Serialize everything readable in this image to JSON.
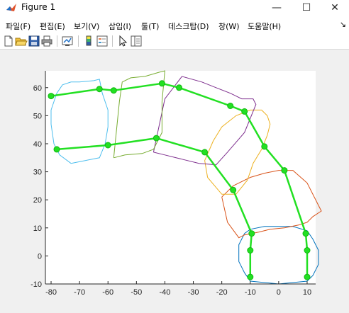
{
  "window": {
    "title": "Figure 1",
    "minimize_glyph": "—",
    "maximize_glyph": "☐",
    "close_glyph": "✕"
  },
  "menu": {
    "items": [
      "파일(F)",
      "편집(E)",
      "보기(V)",
      "삽입(I)",
      "툴(T)",
      "데스크탑(D)",
      "창(W)",
      "도움말(H)"
    ],
    "overflow_glyph": "↘"
  },
  "toolbar": {
    "icons": [
      "new-figure-icon",
      "open-file-icon",
      "save-icon",
      "print-icon",
      "link-plot-icon",
      "insert-colorbar-icon",
      "insert-legend-icon",
      "edit-plot-arrow-icon",
      "property-inspector-icon"
    ]
  },
  "colors": {
    "skeleton": "#22e022",
    "shapes": [
      "#0072bd",
      "#d95319",
      "#edb120",
      "#7e2f8e",
      "#77ac30",
      "#4dbeee"
    ]
  },
  "chart_data": {
    "type": "line",
    "title": "",
    "xlabel": "",
    "ylabel": "",
    "xlim": [
      -82,
      13
    ],
    "ylim": [
      -10,
      66
    ],
    "xticks": [
      -80,
      -70,
      -60,
      -50,
      -40,
      -30,
      -20,
      -10,
      0,
      10
    ],
    "yticks": [
      -10,
      0,
      10,
      20,
      30,
      40,
      50,
      60
    ],
    "grid": false,
    "skeleton_series": [
      {
        "x": [
          -10,
          -10,
          -9.5,
          -16,
          -26,
          -43,
          -60,
          -78
        ],
        "y": [
          -7.5,
          2,
          8,
          23.5,
          37,
          42,
          39.5,
          38
        ]
      },
      {
        "x": [
          10,
          10,
          9.5,
          2,
          -5,
          -12,
          -17,
          -35,
          -41,
          -58,
          -63,
          -80
        ],
        "y": [
          -7.5,
          2,
          8,
          30.5,
          39,
          51.5,
          53.5,
          60,
          61.5,
          59,
          59.5,
          57
        ]
      }
    ],
    "shape_outlines": [
      {
        "x": [
          -10,
          -12,
          -14,
          -14,
          -12,
          -10,
          -5,
          5,
          10,
          12,
          14,
          14,
          12,
          10,
          0,
          -10
        ],
        "y": [
          -9,
          -6,
          -2,
          4,
          8,
          9.5,
          10.5,
          10.5,
          9,
          6,
          2,
          -3,
          -7,
          -9,
          -10,
          -9
        ]
      },
      {
        "x": [
          -20,
          -16,
          -10,
          -5,
          0,
          5,
          10,
          15,
          12,
          10,
          7,
          2,
          -3,
          -7,
          -12,
          -14,
          -18,
          -20
        ],
        "y": [
          21,
          25,
          28,
          29.5,
          30.5,
          30.5,
          26,
          16,
          14,
          12,
          11,
          10,
          9.5,
          8.5,
          7.5,
          6.5,
          12,
          21
        ]
      },
      {
        "x": [
          -25,
          -20,
          -15,
          -11,
          -9,
          -6,
          -4,
          -3,
          -4,
          -6,
          -10,
          -15,
          -20,
          -23,
          -26,
          -25
        ],
        "y": [
          28,
          22,
          22,
          27,
          33,
          38,
          43,
          47,
          50,
          52,
          52,
          50,
          46,
          41,
          34,
          28
        ]
      },
      {
        "x": [
          -44,
          -40,
          -34,
          -28,
          -22,
          -18,
          -12,
          -8,
          -9,
          -13,
          -15,
          -17,
          -22,
          -27,
          -34,
          -40,
          -44
        ],
        "y": [
          37,
          36,
          34.5,
          33,
          32.5,
          37,
          44,
          54,
          56,
          56,
          57,
          58,
          60,
          62,
          64,
          56,
          37
        ]
      },
      {
        "x": [
          -58,
          -54,
          -48,
          -44,
          -41,
          -41,
          -40,
          -42,
          -47,
          -52,
          -55,
          -56,
          -58
        ],
        "y": [
          35,
          36,
          36.5,
          38,
          44,
          55,
          66,
          65.5,
          64,
          63.5,
          62,
          55,
          35
        ]
      },
      {
        "x": [
          -73,
          -77,
          -79,
          -80,
          -80,
          -78,
          -76,
          -73,
          -70,
          -65,
          -63,
          -62,
          -60,
          -60,
          -61,
          -63,
          -68,
          -73
        ],
        "y": [
          33,
          36,
          40,
          47,
          52,
          58,
          61,
          62,
          62,
          62.5,
          63,
          58,
          52,
          46,
          40,
          35,
          34,
          33
        ]
      }
    ]
  }
}
